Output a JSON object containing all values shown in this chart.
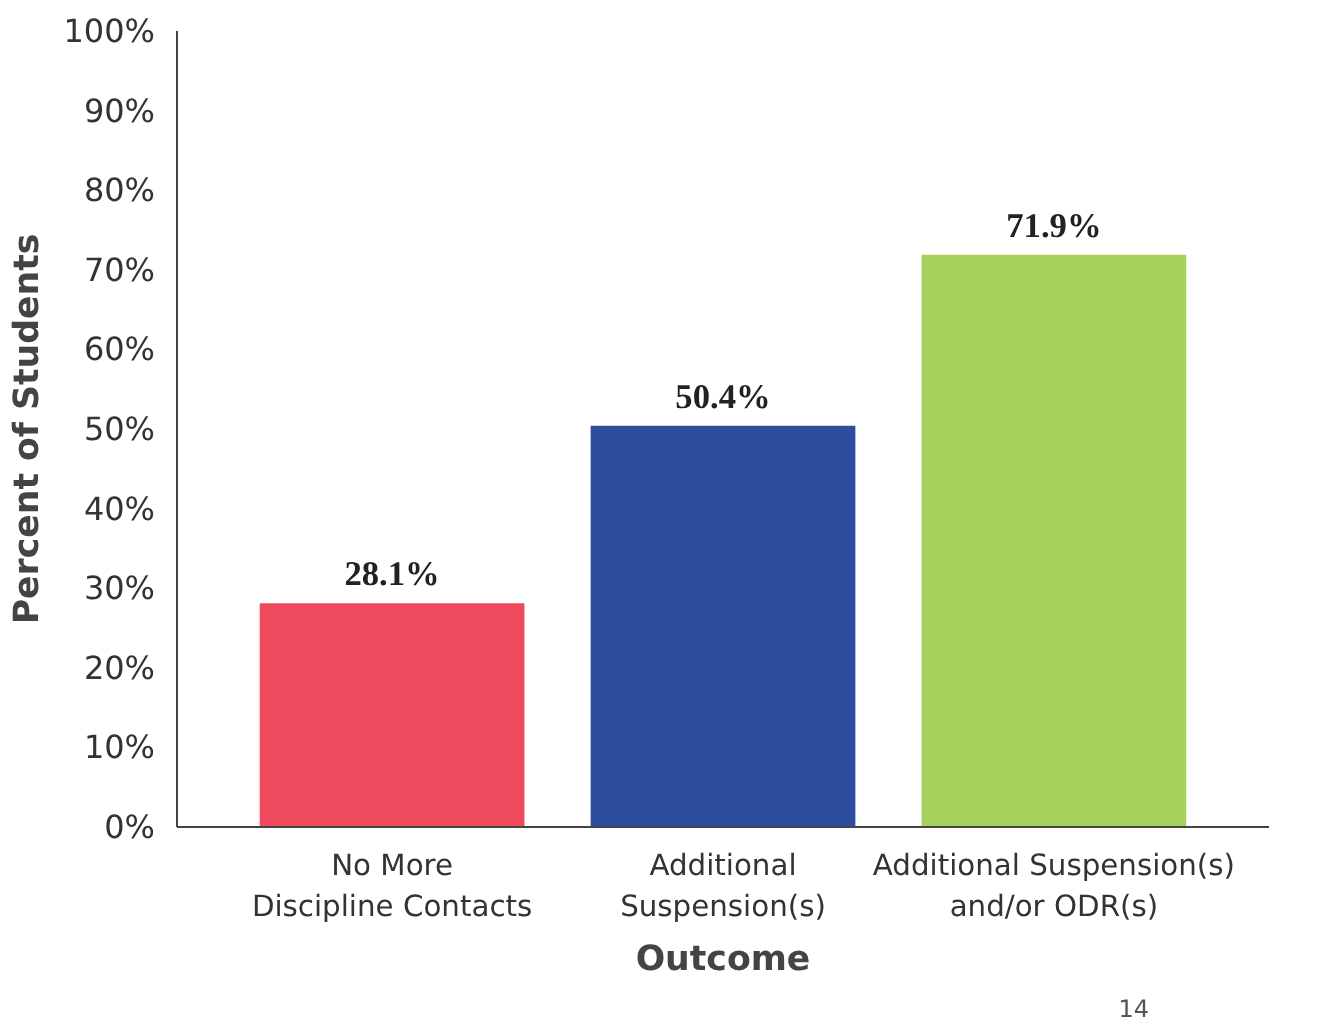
{
  "chart_data": {
    "type": "bar",
    "categories": [
      "No More\nDiscipline Contacts",
      "Additional\nSuspension(s)",
      "Additional Suspension(s)\nand/or ODR(s)"
    ],
    "values": [
      28.1,
      50.4,
      71.9
    ],
    "colors": [
      "#f04a5e",
      "#2f4d9e",
      "#a6d15a"
    ],
    "value_labels": [
      "28.1%",
      "50.4%",
      "71.9%"
    ],
    "xlabel": "Outcome",
    "ylabel": "Percent of Students",
    "ylim": [
      0,
      100
    ],
    "yticks": [
      {
        "value": 0,
        "label": "0%"
      },
      {
        "value": 10,
        "label": "10%"
      },
      {
        "value": 20,
        "label": "20%"
      },
      {
        "value": 30,
        "label": "30%"
      },
      {
        "value": 40,
        "label": "40%"
      },
      {
        "value": 50,
        "label": "50%"
      },
      {
        "value": 60,
        "label": "60%"
      },
      {
        "value": 70,
        "label": "70%"
      },
      {
        "value": 80,
        "label": "80%"
      },
      {
        "value": 90,
        "label": "90%"
      },
      {
        "value": 100,
        "label": "100%"
      }
    ],
    "grid": false,
    "annotations": [
      "14"
    ]
  }
}
